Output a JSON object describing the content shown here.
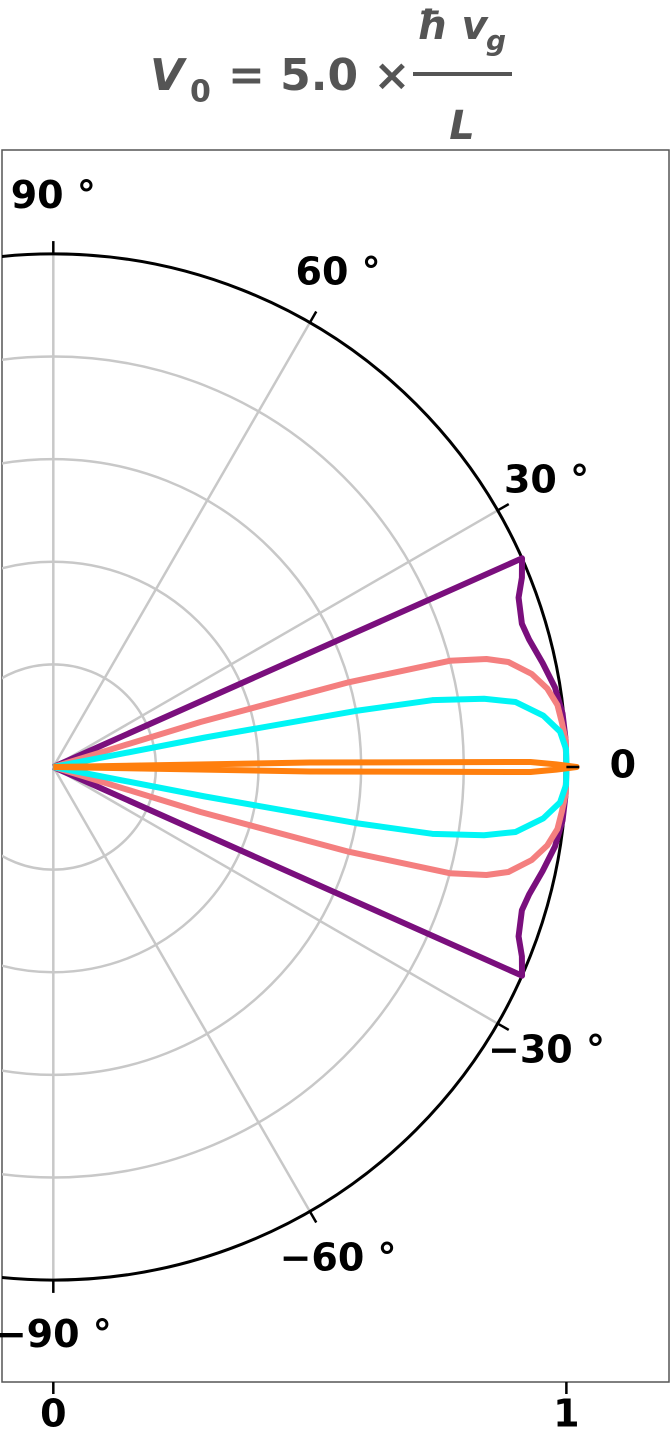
{
  "chart_data": {
    "type": "polar",
    "title": {
      "lhs": "V",
      "lhs_sub": "0",
      "mid": "= 5.0 ×",
      "num": "ħ v",
      "num_sub": "g",
      "den": "L"
    },
    "rlim": [
      0,
      1
    ],
    "xlim": [
      -0.1,
      1.2
    ],
    "xticks": [
      0,
      1
    ],
    "rgrid": [
      0.2,
      0.4,
      0.6,
      0.8
    ],
    "thetaticks": [
      {
        "value": 90,
        "label": "90 °"
      },
      {
        "value": 60,
        "label": "60 °"
      },
      {
        "value": 30,
        "label": "30 °"
      },
      0,
      {
        "value": -30,
        "label": "−30 °"
      },
      {
        "value": -60,
        "label": "−60 °"
      },
      {
        "value": -90,
        "label": "−90 °"
      }
    ],
    "grid": true,
    "series": [
      {
        "color": "#7a0f7d",
        "theta": [
          -25,
          -24,
          -22,
          -20,
          -17,
          -15,
          -12,
          -9,
          -6,
          -3,
          0,
          3,
          6,
          9,
          12,
          15,
          17,
          20,
          22,
          24,
          25
        ],
        "values": [
          0,
          1.0,
          0.985,
          0.965,
          0.955,
          0.96,
          0.975,
          0.99,
          0.998,
          1.0,
          1.0,
          1.0,
          0.998,
          0.99,
          0.975,
          0.96,
          0.955,
          0.965,
          0.985,
          1.0,
          0
        ]
      },
      {
        "color": "#f47f7f",
        "theta": [
          -18,
          -17,
          -16,
          -15,
          -14,
          -13,
          -11,
          -9,
          -7,
          -5,
          -3,
          0,
          3,
          5,
          7,
          9,
          11,
          13,
          14,
          15,
          16,
          17,
          18
        ],
        "values": [
          0,
          0.3,
          0.6,
          0.8,
          0.87,
          0.91,
          0.95,
          0.975,
          0.99,
          0.995,
          1.0,
          1.0,
          1.0,
          0.995,
          0.99,
          0.975,
          0.95,
          0.91,
          0.87,
          0.8,
          0.6,
          0.3,
          0
        ]
      },
      {
        "color": "#00f5f5",
        "theta": [
          -11.5,
          -11,
          -10.5,
          -10,
          -9,
          -8,
          -6,
          -4,
          -2,
          0,
          2,
          4,
          6,
          8,
          9,
          10,
          10.5,
          11,
          11.5
        ],
        "values": [
          0,
          0.3,
          0.6,
          0.75,
          0.85,
          0.91,
          0.96,
          0.99,
          1.0,
          1.0,
          1.0,
          0.99,
          0.96,
          0.91,
          0.85,
          0.75,
          0.6,
          0.3,
          0
        ]
      },
      {
        "color": "#ff7f0e",
        "theta": [
          -1.2,
          -1,
          -0.6,
          -0.3,
          0,
          0.3,
          0.6,
          1,
          1.2
        ],
        "values": [
          0,
          0.5,
          0.93,
          0.98,
          1.02,
          0.98,
          0.93,
          0.5,
          0
        ]
      }
    ]
  }
}
